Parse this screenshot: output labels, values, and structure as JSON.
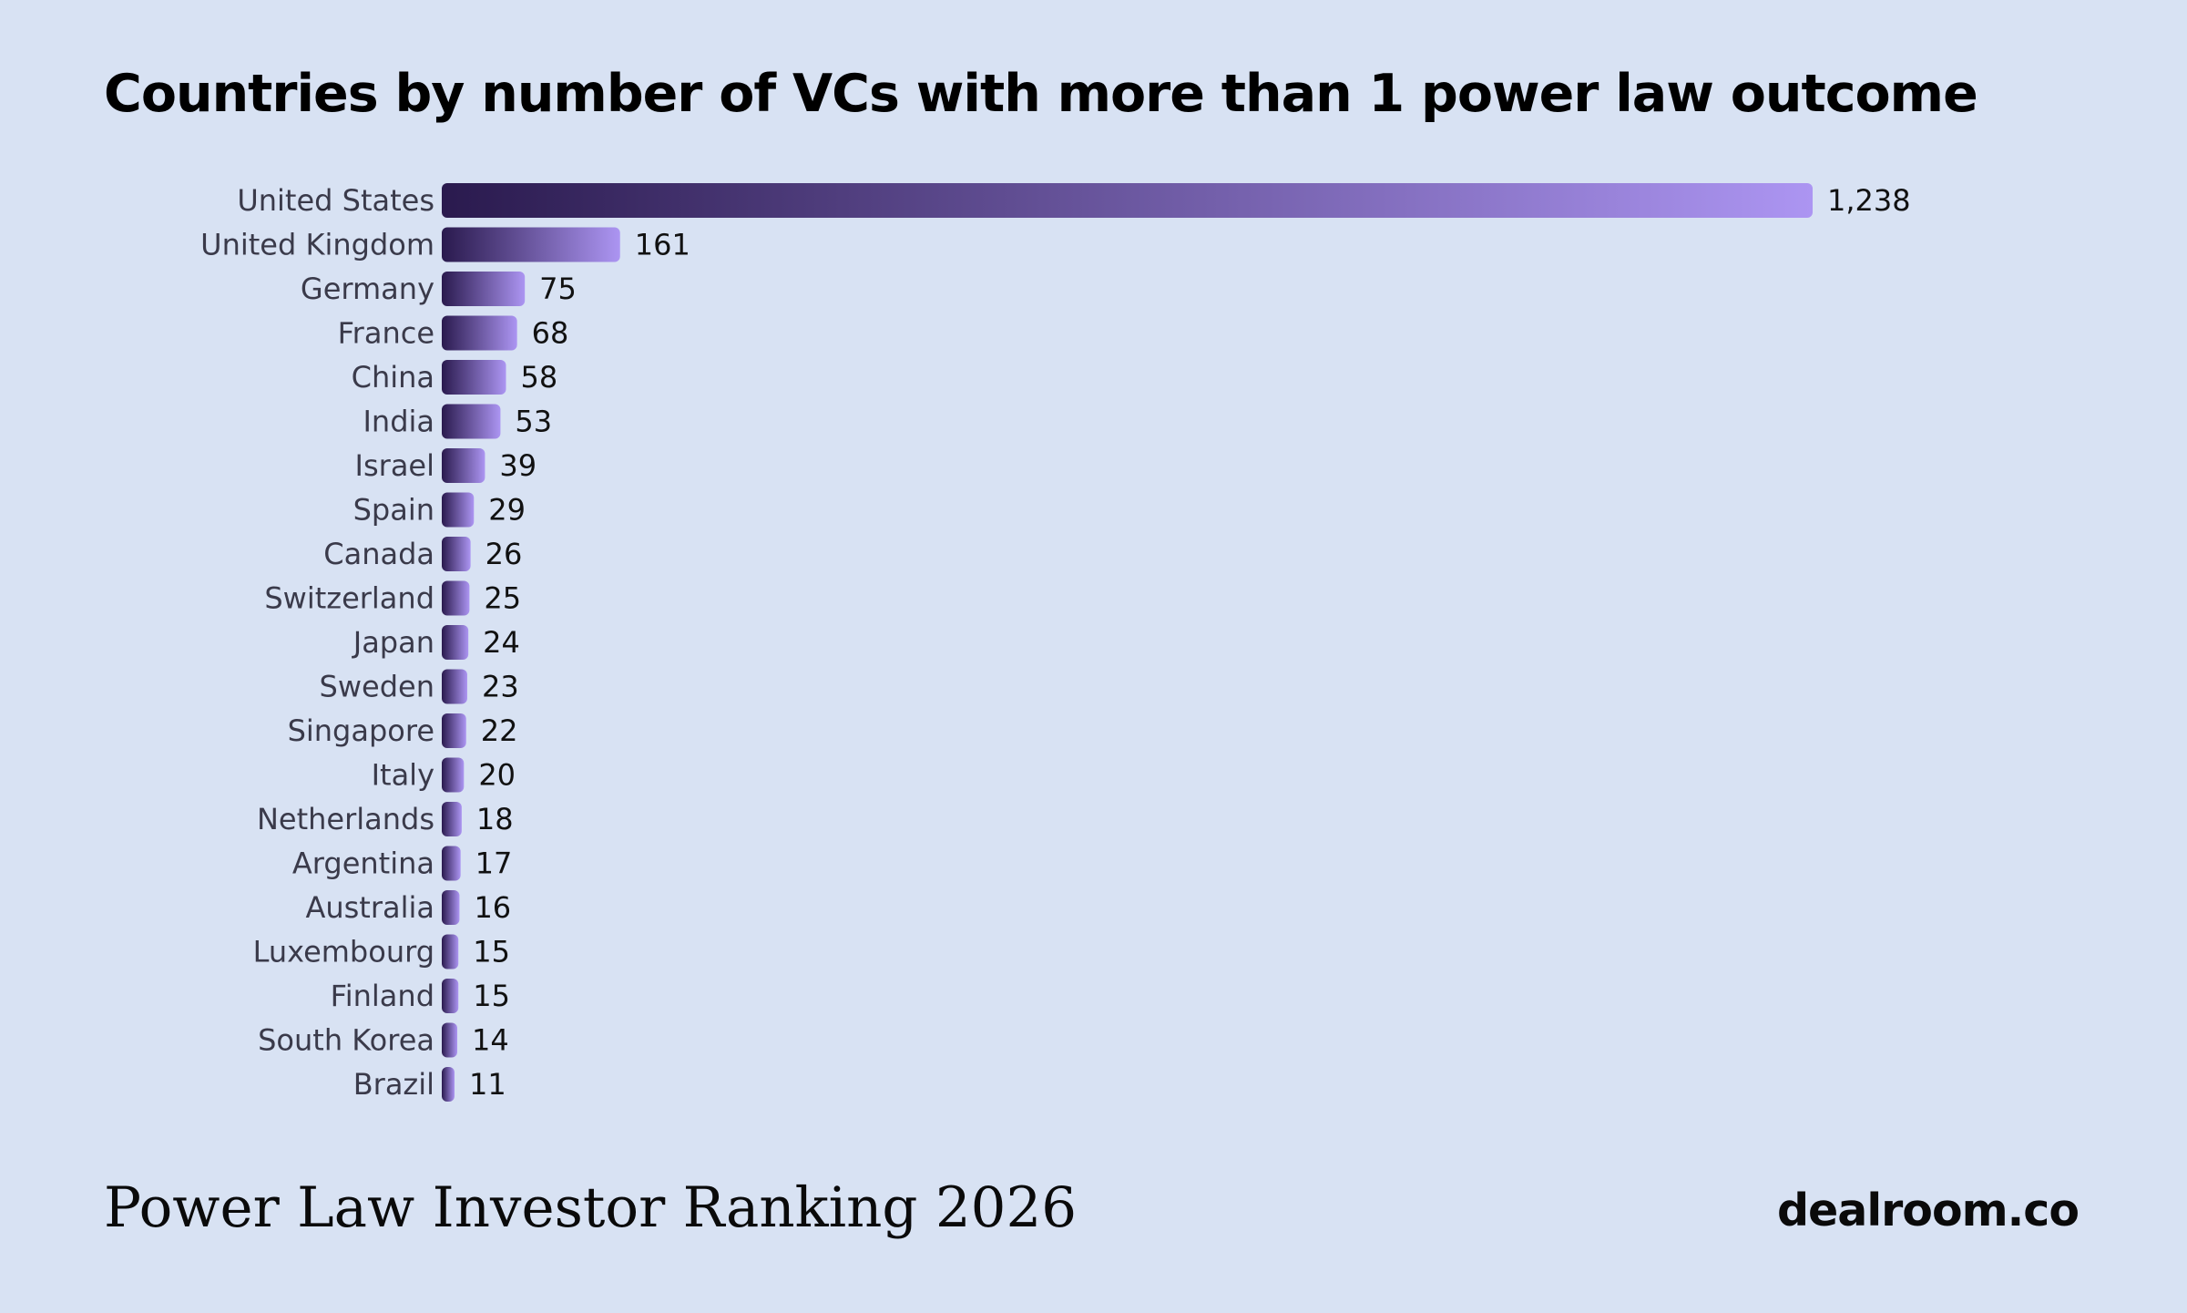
{
  "header": {
    "title": "Countries by number of VCs with more than 1 power law outcome"
  },
  "footer": {
    "ranking": "Power Law Investor Ranking 2026",
    "brand": "dealroom.co"
  },
  "colors": {
    "background": "#d8e2f3",
    "bar_start": "#2a1a4e",
    "bar_end": "#ac95f2",
    "text": "#3a3a4a",
    "value_text": "#111111"
  },
  "chart_data": {
    "type": "bar",
    "orientation": "horizontal",
    "title": "Countries by number of VCs with more than 1 power law outcome",
    "xlabel": "",
    "ylabel": "",
    "grid": false,
    "legend": "none",
    "categories": [
      "United States",
      "United Kingdom",
      "Germany",
      "France",
      "China",
      "India",
      "Israel",
      "Spain",
      "Canada",
      "Switzerland",
      "Japan",
      "Sweden",
      "Singapore",
      "Italy",
      "Netherlands",
      "Argentina",
      "Australia",
      "Luxembourg",
      "Finland",
      "South Korea",
      "Brazil"
    ],
    "values": [
      1238,
      161,
      75,
      68,
      58,
      53,
      39,
      29,
      26,
      25,
      24,
      23,
      22,
      20,
      18,
      17,
      16,
      15,
      15,
      14,
      11
    ],
    "value_labels": [
      "1,238",
      "161",
      "75",
      "68",
      "58",
      "53",
      "39",
      "29",
      "26",
      "25",
      "24",
      "23",
      "22",
      "20",
      "18",
      "17",
      "16",
      "15",
      "15",
      "14",
      "11"
    ],
    "xlim": [
      0,
      1238
    ]
  }
}
